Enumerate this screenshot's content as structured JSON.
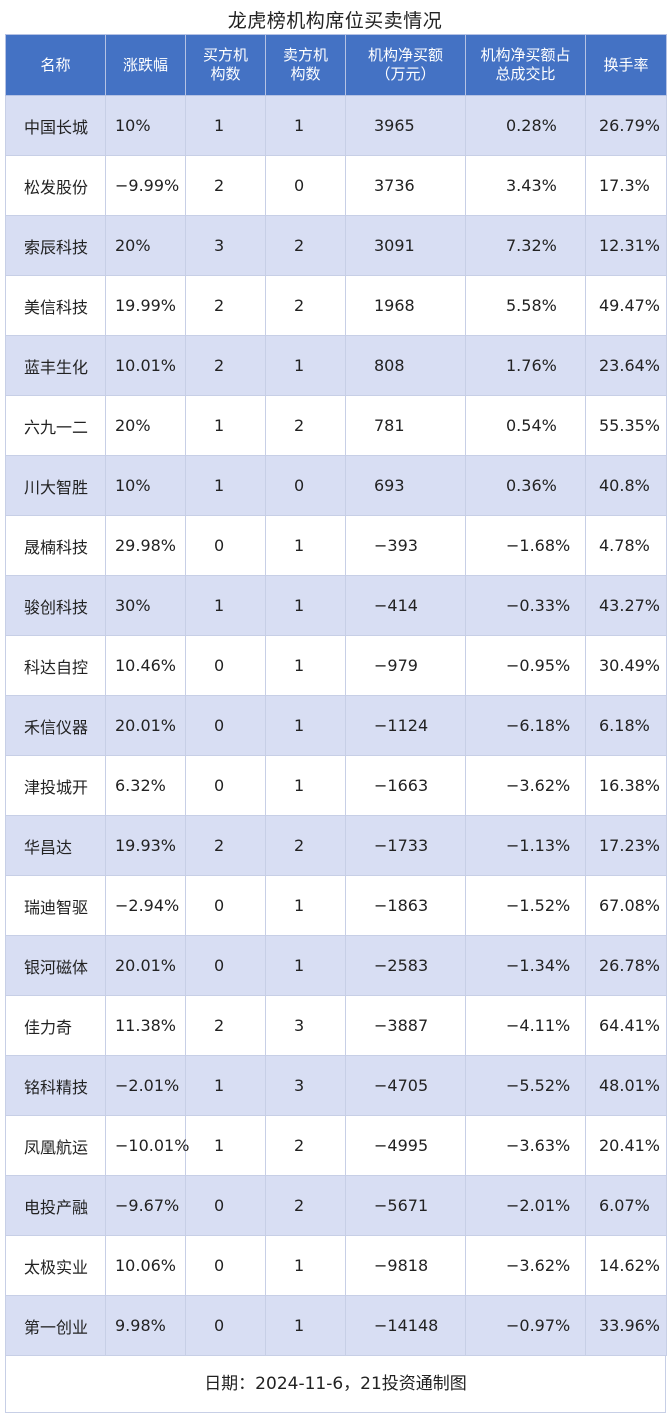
{
  "chart_data": {
    "type": "table",
    "title": "龙虎榜机构席位买卖情况",
    "columns": [
      "名称",
      "涨跌幅",
      "买方机\n构数",
      "卖方机\n构数",
      "机构净买额\n（万元）",
      "机构净买额占\n总成交比",
      "换手率"
    ],
    "rows": [
      [
        "中国长城",
        "10%",
        "1",
        "1",
        "3965",
        "0.28%",
        "26.79%"
      ],
      [
        "松发股份",
        "−9.99%",
        "2",
        "0",
        "3736",
        "3.43%",
        "17.3%"
      ],
      [
        "索辰科技",
        "20%",
        "3",
        "2",
        "3091",
        "7.32%",
        "12.31%"
      ],
      [
        "美信科技",
        "19.99%",
        "2",
        "2",
        "1968",
        "5.58%",
        "49.47%"
      ],
      [
        "蓝丰生化",
        "10.01%",
        "2",
        "1",
        "808",
        "1.76%",
        "23.64%"
      ],
      [
        "六九一二",
        "20%",
        "1",
        "2",
        "781",
        "0.54%",
        "55.35%"
      ],
      [
        "川大智胜",
        "10%",
        "1",
        "0",
        "693",
        "0.36%",
        "40.8%"
      ],
      [
        "晟楠科技",
        "29.98%",
        "0",
        "1",
        "−393",
        "−1.68%",
        "4.78%"
      ],
      [
        "骏创科技",
        "30%",
        "1",
        "1",
        "−414",
        "−0.33%",
        "43.27%"
      ],
      [
        "科达自控",
        "10.46%",
        "0",
        "1",
        "−979",
        "−0.95%",
        "30.49%"
      ],
      [
        "禾信仪器",
        "20.01%",
        "0",
        "1",
        "−1124",
        "−6.18%",
        "6.18%"
      ],
      [
        "津投城开",
        "6.32%",
        "0",
        "1",
        "−1663",
        "−3.62%",
        "16.38%"
      ],
      [
        "华昌达",
        "19.93%",
        "2",
        "2",
        "−1733",
        "−1.13%",
        "17.23%"
      ],
      [
        "瑞迪智驱",
        "−2.94%",
        "0",
        "1",
        "−1863",
        "−1.52%",
        "67.08%"
      ],
      [
        "银河磁体",
        "20.01%",
        "0",
        "1",
        "−2583",
        "−1.34%",
        "26.78%"
      ],
      [
        "佳力奇",
        "11.38%",
        "2",
        "3",
        "−3887",
        "−4.11%",
        "64.41%"
      ],
      [
        "铭科精技",
        "−2.01%",
        "1",
        "3",
        "−4705",
        "−5.52%",
        "48.01%"
      ],
      [
        "凤凰航运",
        "−10.01%",
        "1",
        "2",
        "−4995",
        "−3.63%",
        "20.41%"
      ],
      [
        "电投产融",
        "−9.67%",
        "0",
        "2",
        "−5671",
        "−2.01%",
        "6.07%"
      ],
      [
        "太极实业",
        "10.06%",
        "0",
        "1",
        "−9818",
        "−3.62%",
        "14.62%"
      ],
      [
        "第一创业",
        "9.98%",
        "0",
        "1",
        "−14148",
        "−0.97%",
        "33.96%"
      ]
    ],
    "footer": "日期：2024-11-6，21投资通制图",
    "header_color": "#4472c4",
    "stripe_color": "#d8def3"
  }
}
